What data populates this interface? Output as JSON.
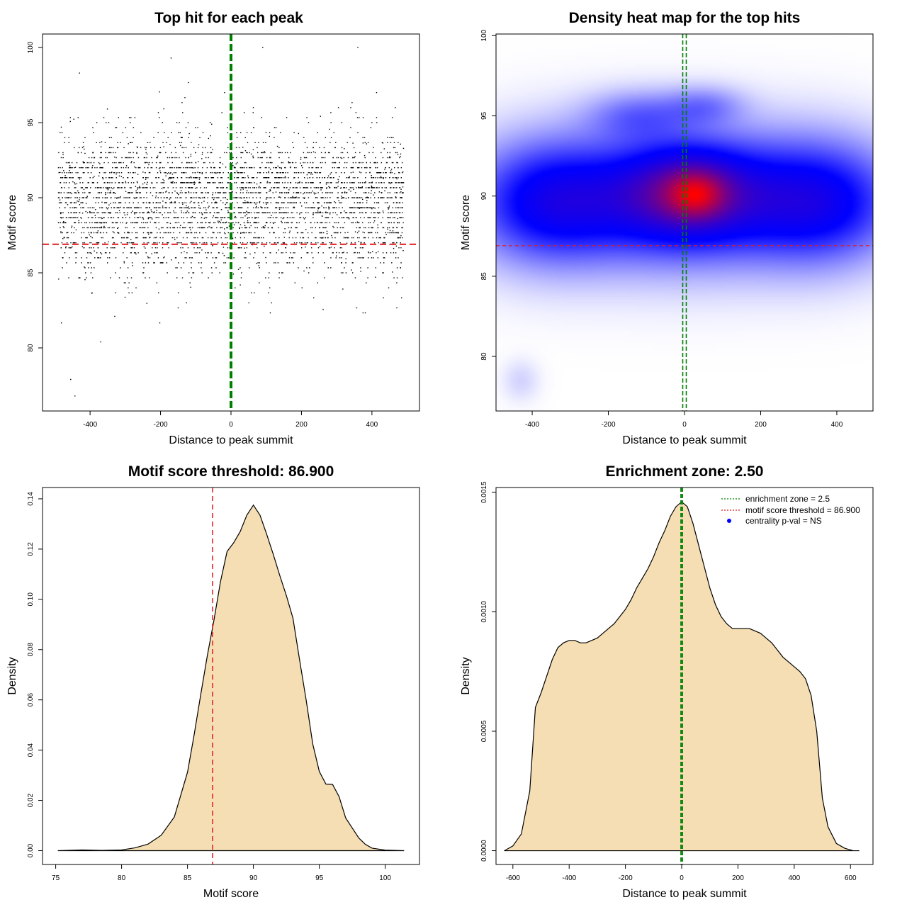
{
  "chart_data": [
    {
      "type": "scatter",
      "title": "Top hit for each peak",
      "xlabel": "Distance to peak summit",
      "ylabel": "Motif score",
      "xlim": [
        -535,
        535
      ],
      "ylim": [
        75.8,
        100.9
      ],
      "x_ticks": [
        -400,
        -200,
        0,
        200,
        400
      ],
      "x_tick_labels": [
        "-400",
        "-200",
        "0",
        "200",
        "400"
      ],
      "y_ticks": [
        80,
        85,
        90,
        95,
        100
      ],
      "y_tick_labels": [
        "80",
        "85",
        "90",
        "95",
        "100"
      ],
      "threshold_score": 86.9,
      "summit_position": 0,
      "points_description_count": 4000,
      "point_distribution": {
        "x_range": [
          -490,
          490
        ],
        "score_center": 89.7,
        "score_sd": 2.3,
        "score_min": 76.8,
        "score_max": 100
      },
      "outliers": [
        [
          -455,
          77.9
        ],
        [
          -443,
          76.8
        ],
        [
          -370,
          80.4
        ],
        [
          -330,
          82.1
        ],
        [
          90,
          100
        ],
        [
          -170,
          99.3
        ],
        [
          360,
          100
        ],
        [
          -430,
          98.3
        ]
      ],
      "colors": {
        "points": "#000000",
        "threshold": "#e41a1c",
        "summit": "#008000"
      }
    },
    {
      "type": "heatmap",
      "title": "Density heat map for the top hits",
      "xlabel": "Distance to peak summit",
      "ylabel": "Motif score",
      "xlim": [
        -495,
        495
      ],
      "ylim": [
        76.6,
        100.1
      ],
      "x_ticks": [
        -400,
        -200,
        0,
        200,
        400
      ],
      "x_tick_labels": [
        "-400",
        "-200",
        "0",
        "200",
        "400"
      ],
      "y_ticks": [
        80,
        85,
        90,
        95,
        100
      ],
      "y_tick_labels": [
        "80",
        "85",
        "90",
        "95",
        "100"
      ],
      "threshold_score": 86.9,
      "summit_position": 0,
      "density_blobs": [
        {
          "x": 0,
          "y": 89.8,
          "sx": 250,
          "sy": 2.6,
          "w": 1.0
        },
        {
          "x": -360,
          "y": 89.6,
          "sx": 130,
          "sy": 2.4,
          "w": 0.75
        },
        {
          "x": 360,
          "y": 89.6,
          "sx": 130,
          "sy": 2.4,
          "w": 0.75
        },
        {
          "x": 10,
          "y": 90.3,
          "sx": 110,
          "sy": 1.8,
          "w": 0.9
        },
        {
          "x": 30,
          "y": 90.1,
          "sx": 50,
          "sy": 1.0,
          "w": 0.7
        },
        {
          "x": -120,
          "y": 95.0,
          "sx": 90,
          "sy": 1.0,
          "w": 0.35
        },
        {
          "x": 50,
          "y": 95.6,
          "sx": 70,
          "sy": 0.8,
          "w": 0.3
        },
        {
          "x": -430,
          "y": 78.5,
          "sx": 30,
          "sy": 0.8,
          "w": 0.08
        }
      ],
      "colors": {
        "low": "#ffffff",
        "mid": "#0000ff",
        "high": "#ff0000",
        "threshold": "#e41a1c",
        "summit": "#008000"
      }
    },
    {
      "type": "area",
      "title": "Motif score threshold: 86.900",
      "xlabel": "Motif score",
      "ylabel": "Density",
      "xlim": [
        74.0,
        102.6
      ],
      "ylim": [
        -0.0055,
        0.1445
      ],
      "x_ticks": [
        75,
        80,
        85,
        90,
        95,
        100
      ],
      "x_tick_labels": [
        "75",
        "80",
        "85",
        "90",
        "95",
        "100"
      ],
      "y_ticks": [
        0.0,
        0.02,
        0.04,
        0.06,
        0.08,
        0.1,
        0.12,
        0.14
      ],
      "y_tick_labels": [
        "0.00",
        "0.02",
        "0.04",
        "0.06",
        "0.08",
        "0.10",
        "0.12",
        "0.14"
      ],
      "threshold_score": 86.9,
      "x": [
        75.2,
        77.0,
        78.5,
        80.0,
        81.0,
        82.0,
        83.0,
        84.0,
        85.0,
        85.5,
        86.0,
        86.5,
        87.0,
        87.5,
        88.0,
        88.5,
        89.0,
        89.5,
        90.0,
        90.5,
        91.0,
        91.5,
        92.0,
        92.5,
        93.0,
        93.5,
        94.0,
        94.5,
        95.0,
        95.5,
        96.0,
        96.5,
        97.0,
        97.5,
        98.0,
        98.5,
        99.0,
        100.0,
        101.4
      ],
      "y": [
        0.0,
        0.0003,
        0.0001,
        0.0003,
        0.0011,
        0.0026,
        0.0061,
        0.0134,
        0.0312,
        0.046,
        0.062,
        0.0775,
        0.0915,
        0.107,
        0.119,
        0.1225,
        0.127,
        0.1335,
        0.1375,
        0.1335,
        0.126,
        0.118,
        0.1095,
        0.1015,
        0.0925,
        0.076,
        0.06,
        0.0425,
        0.0315,
        0.0265,
        0.0264,
        0.0215,
        0.013,
        0.009,
        0.005,
        0.0025,
        0.001,
        0.0002,
        0.0
      ],
      "colors": {
        "fill": "#f5deb3",
        "line": "#000000",
        "threshold": "#e41a1c"
      }
    },
    {
      "type": "area",
      "title": "Enrichment zone: 2.50",
      "xlabel": "Distance to peak summit",
      "ylabel": "Density",
      "xlim": [
        -660,
        680
      ],
      "ylim": [
        -5.77e-05,
        0.00152
      ],
      "x_ticks": [
        -600,
        -400,
        -200,
        0,
        200,
        400,
        600
      ],
      "x_tick_labels": [
        "-600",
        "-400",
        "-200",
        "0",
        "200",
        "400",
        "600"
      ],
      "y_ticks": [
        0.0,
        0.0005,
        0.001,
        0.0015
      ],
      "y_tick_labels": [
        "0.0000",
        "0.0005",
        "0.0010",
        "0.0015"
      ],
      "enrichment_zone": 2.5,
      "x": [
        -630,
        -600,
        -570,
        -540,
        -520,
        -500,
        -480,
        -460,
        -440,
        -420,
        -400,
        -380,
        -360,
        -340,
        -320,
        -300,
        -280,
        -260,
        -240,
        -220,
        -200,
        -180,
        -160,
        -140,
        -120,
        -100,
        -80,
        -60,
        -40,
        -20,
        0,
        20,
        40,
        60,
        80,
        100,
        120,
        140,
        160,
        180,
        200,
        220,
        240,
        260,
        280,
        300,
        320,
        340,
        360,
        380,
        400,
        420,
        440,
        460,
        480,
        500,
        520,
        550,
        580,
        610,
        630
      ],
      "y": [
        0.0,
        2e-05,
        7e-05,
        0.00025,
        0.0006,
        0.00066,
        0.00073,
        0.0008,
        0.00085,
        0.00087,
        0.00088,
        0.00088,
        0.00087,
        0.00087,
        0.00088,
        0.00089,
        0.00091,
        0.00093,
        0.00095,
        0.00098,
        0.00101,
        0.00105,
        0.0011,
        0.00114,
        0.00118,
        0.00123,
        0.00129,
        0.00134,
        0.0014,
        0.00144,
        0.00146,
        0.00144,
        0.00137,
        0.00128,
        0.00119,
        0.0011,
        0.00103,
        0.00098,
        0.00095,
        0.00093,
        0.00093,
        0.00093,
        0.00093,
        0.00092,
        0.00091,
        0.00089,
        0.00087,
        0.00084,
        0.00081,
        0.00079,
        0.00077,
        0.00075,
        0.00072,
        0.00065,
        0.0005,
        0.00022,
        0.0001,
        3e-05,
        1e-05,
        0.0,
        0.0
      ],
      "legend": [
        {
          "label": "enrichment zone = 2.5",
          "style": "dotted",
          "color": "#008000"
        },
        {
          "label": "motif score threshold = 86.900",
          "style": "dotted",
          "color": "#e41a1c"
        },
        {
          "label": "centrality p-val = NS",
          "style": "point",
          "color": "#0000ff"
        }
      ],
      "legend_position": "top-right",
      "colors": {
        "fill": "#f5deb3",
        "line": "#000000",
        "zone": "#008000"
      }
    }
  ]
}
